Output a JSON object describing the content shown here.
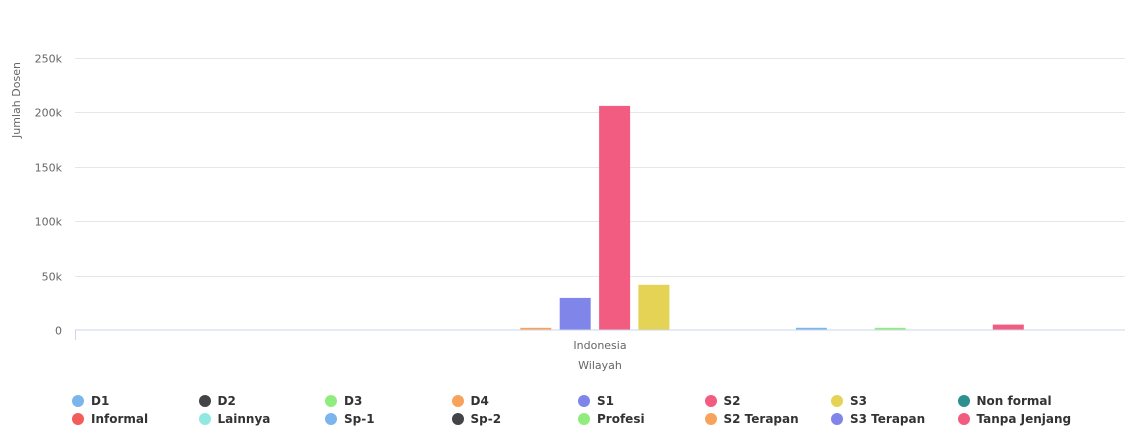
{
  "chart_data": {
    "type": "bar",
    "categories": [
      "Indonesia"
    ],
    "xlabel": "Wilayah",
    "ylabel": "Jumlah Dosen",
    "ylim": [
      0,
      250000
    ],
    "yticks": [
      {
        "value": 0,
        "label": "0"
      },
      {
        "value": 50000,
        "label": "50k"
      },
      {
        "value": 100000,
        "label": "100k"
      },
      {
        "value": 150000,
        "label": "150k"
      },
      {
        "value": 200000,
        "label": "200k"
      },
      {
        "value": 250000,
        "label": "250k"
      }
    ],
    "grid": true,
    "legend_position": "bottom",
    "series": [
      {
        "name": "D1",
        "color": "#7cb5ec",
        "values": [
          0
        ]
      },
      {
        "name": "D2",
        "color": "#434348",
        "values": [
          0
        ]
      },
      {
        "name": "D3",
        "color": "#90ed7d",
        "values": [
          0
        ]
      },
      {
        "name": "D4",
        "color": "#f7a35c",
        "values": [
          2000
        ]
      },
      {
        "name": "S1",
        "color": "#8085e9",
        "values": [
          29500
        ]
      },
      {
        "name": "S2",
        "color": "#f15c80",
        "values": [
          206000
        ]
      },
      {
        "name": "S3",
        "color": "#e4d354",
        "values": [
          41500
        ]
      },
      {
        "name": "Non formal",
        "color": "#2b908f",
        "values": [
          0
        ]
      },
      {
        "name": "Informal",
        "color": "#f45b5b",
        "values": [
          0
        ]
      },
      {
        "name": "Lainnya",
        "color": "#91e8e1",
        "values": [
          0
        ]
      },
      {
        "name": "Sp-1",
        "color": "#7cb5ec",
        "values": [
          2000
        ]
      },
      {
        "name": "Sp-2",
        "color": "#434348",
        "values": [
          0
        ]
      },
      {
        "name": "Profesi",
        "color": "#90ed7d",
        "values": [
          2000
        ]
      },
      {
        "name": "S2 Terapan",
        "color": "#f7a35c",
        "values": [
          0
        ]
      },
      {
        "name": "S3 Terapan",
        "color": "#8085e9",
        "values": [
          0
        ]
      },
      {
        "name": "Tanpa Jenjang",
        "color": "#f15c80",
        "values": [
          5000
        ]
      }
    ]
  }
}
